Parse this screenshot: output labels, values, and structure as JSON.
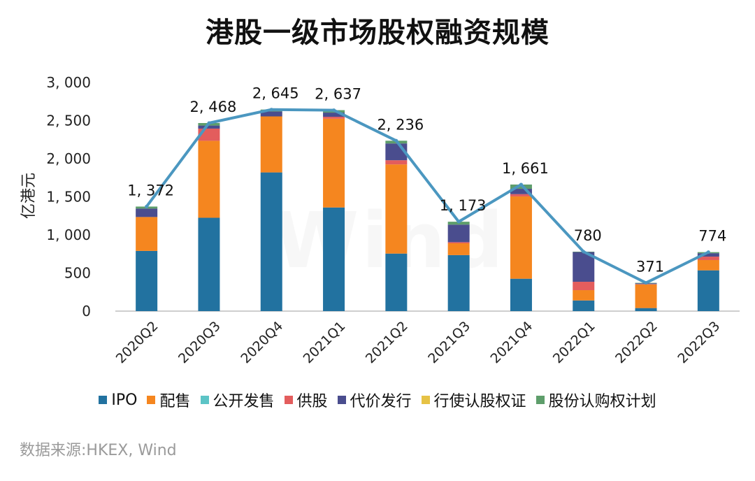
{
  "chart_data": {
    "type": "bar",
    "title": "港股一级市场股权融资规模",
    "ylabel": "亿港元",
    "xlabel": "",
    "ylim": [
      0,
      3000
    ],
    "yticks": [
      0,
      500,
      1000,
      1500,
      2000,
      2500,
      3000
    ],
    "ytick_labels": [
      "0",
      "500",
      "1, 000",
      "1, 500",
      "2, 000",
      "2, 500",
      "3, 000"
    ],
    "categories": [
      "2020Q2",
      "2020Q3",
      "2020Q4",
      "2021Q1",
      "2021Q2",
      "2021Q3",
      "2021Q4",
      "2022Q1",
      "2022Q2",
      "2022Q3"
    ],
    "stacked": true,
    "series": [
      {
        "name": "IPO",
        "color": "#2272a0",
        "values": [
          790,
          1225,
          1820,
          1360,
          755,
          735,
          425,
          140,
          40,
          535
        ]
      },
      {
        "name": "配售",
        "color": "#f5861f",
        "values": [
          445,
          1010,
          735,
          1165,
          1170,
          155,
          1080,
          135,
          310,
          135
        ]
      },
      {
        "name": "公开发售",
        "color": "#5cc4c6",
        "values": [
          0,
          0,
          0,
          0,
          0,
          0,
          0,
          0,
          0,
          0
        ]
      },
      {
        "name": "供股",
        "color": "#e35d5d",
        "values": [
          0,
          160,
          0,
          25,
          55,
          15,
          30,
          110,
          5,
          45
        ]
      },
      {
        "name": "代价发行",
        "color": "#4a4d8e",
        "values": [
          110,
          40,
          65,
          55,
          220,
          230,
          70,
          390,
          10,
          45
        ]
      },
      {
        "name": "行使认股权证",
        "color": "#e6c245",
        "values": [
          0,
          0,
          0,
          0,
          0,
          0,
          0,
          0,
          0,
          0
        ]
      },
      {
        "name": "股份认购权计划",
        "color": "#5e9e6b",
        "values": [
          27,
          33,
          25,
          32,
          36,
          38,
          56,
          5,
          6,
          14
        ]
      }
    ],
    "totals": {
      "name": "合计",
      "type": "line",
      "color": "#4b97c0",
      "values": [
        1372,
        2468,
        2645,
        2637,
        2236,
        1173,
        1661,
        780,
        371,
        774
      ],
      "labels": [
        "1, 372",
        "2, 468",
        "2, 645",
        "2, 637",
        "2, 236",
        "1, 173",
        "1, 661",
        "780",
        "371",
        "774"
      ]
    },
    "legend_position": "bottom",
    "grid": false
  },
  "watermark": "Wind",
  "source_note": "数据来源:HKEX, Wind"
}
